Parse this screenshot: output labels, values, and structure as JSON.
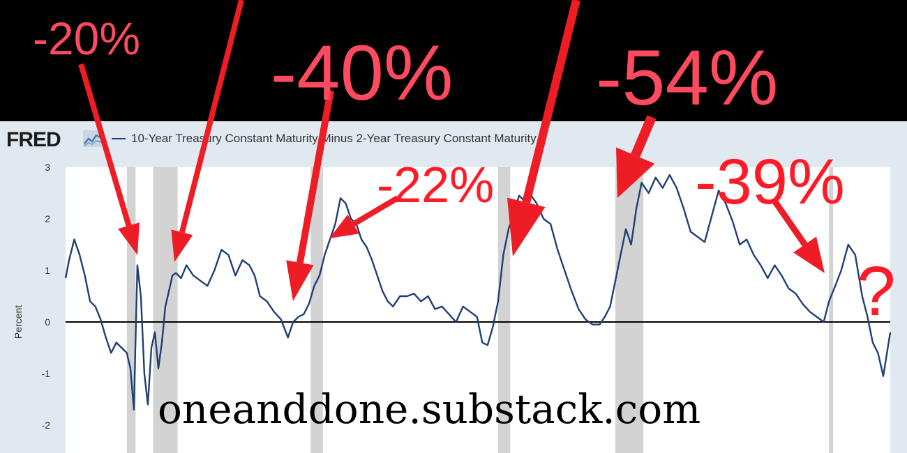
{
  "header": {
    "logo": "FRED",
    "logo_icon": "line-chart-icon"
  },
  "watermark": "oneanddone.substack.com",
  "colors": {
    "line": "#1f3f74",
    "recession": "#d3d3d3",
    "frame": "#e1e9f0",
    "annotation_pink": "#ff4a5f",
    "annotation_red": "#ff1a26",
    "arrow": "#ee1c25"
  },
  "annotations": {
    "a20": "-20%",
    "a40": "-40%",
    "a54": "-54%",
    "a22": "-22%",
    "a39": "-39%",
    "question": "?"
  },
  "chart_data": {
    "type": "line",
    "title": "",
    "legend": "10-Year Treasury Constant Maturity Minus 2-Year Treasury Constant Maturity",
    "xlabel": "",
    "ylabel": "Percent",
    "ylim": [
      -2.3,
      3.0
    ],
    "yticks": [
      3,
      2,
      1,
      0,
      -1,
      -2
    ],
    "xlim": [
      1976.5,
      2023.6
    ],
    "grid": false,
    "zero_line": true,
    "recessions": [
      [
        1980.0,
        1980.5
      ],
      [
        1981.5,
        1982.9
      ],
      [
        1990.5,
        1991.2
      ],
      [
        2001.2,
        2001.9
      ],
      [
        2007.9,
        2009.5
      ],
      [
        2020.1,
        2020.3
      ]
    ],
    "series": [
      {
        "name": "10-Year Treasury Constant Maturity Minus 2-Year Treasury Constant Maturity",
        "x": [
          1976.5,
          1976.7,
          1977.0,
          1977.3,
          1977.6,
          1977.9,
          1978.2,
          1978.5,
          1978.8,
          1979.1,
          1979.4,
          1979.7,
          1980.0,
          1980.2,
          1980.4,
          1980.6,
          1980.8,
          1981.0,
          1981.2,
          1981.4,
          1981.6,
          1981.8,
          1982.0,
          1982.2,
          1982.4,
          1982.6,
          1982.8,
          1983.1,
          1983.4,
          1983.8,
          1984.2,
          1984.6,
          1985.0,
          1985.4,
          1985.8,
          1986.2,
          1986.6,
          1987.0,
          1987.3,
          1987.6,
          1988.0,
          1988.4,
          1988.8,
          1989.2,
          1989.5,
          1989.8,
          1990.1,
          1990.4,
          1990.7,
          1991.0,
          1991.3,
          1991.6,
          1991.9,
          1992.2,
          1992.5,
          1992.8,
          1993.1,
          1993.4,
          1993.7,
          1994.0,
          1994.3,
          1994.6,
          1994.9,
          1995.2,
          1995.6,
          1996.0,
          1996.4,
          1996.8,
          1997.2,
          1997.6,
          1998.0,
          1998.4,
          1998.8,
          1999.2,
          1999.6,
          2000.0,
          2000.3,
          2000.6,
          2000.9,
          2001.2,
          2001.5,
          2001.8,
          2002.1,
          2002.4,
          2002.7,
          2003.0,
          2003.4,
          2003.8,
          2004.2,
          2004.6,
          2005.0,
          2005.4,
          2005.8,
          2006.2,
          2006.6,
          2007.0,
          2007.3,
          2007.6,
          2007.9,
          2008.2,
          2008.5,
          2008.8,
          2009.1,
          2009.4,
          2009.8,
          2010.2,
          2010.6,
          2011.0,
          2011.4,
          2011.8,
          2012.2,
          2012.6,
          2013.0,
          2013.4,
          2013.8,
          2014.2,
          2014.6,
          2015.0,
          2015.4,
          2015.8,
          2016.2,
          2016.6,
          2017.0,
          2017.4,
          2017.8,
          2018.2,
          2018.6,
          2019.0,
          2019.4,
          2019.8,
          2020.1,
          2020.4,
          2020.8,
          2021.2,
          2021.6,
          2022.0,
          2022.3,
          2022.6,
          2022.9,
          2023.2,
          2023.6
        ],
        "values": [
          0.85,
          1.2,
          1.6,
          1.3,
          0.9,
          0.4,
          0.3,
          0.05,
          -0.3,
          -0.6,
          -0.4,
          -0.5,
          -0.6,
          -0.9,
          -1.7,
          1.1,
          0.5,
          -1.0,
          -1.6,
          -0.5,
          -0.2,
          -0.9,
          -0.4,
          0.3,
          0.6,
          0.9,
          0.95,
          0.85,
          1.1,
          0.9,
          0.8,
          0.7,
          1.0,
          1.4,
          1.3,
          0.9,
          1.2,
          1.1,
          0.9,
          0.5,
          0.4,
          0.2,
          0.05,
          -0.3,
          0.0,
          0.1,
          0.15,
          0.35,
          0.7,
          0.9,
          1.3,
          1.6,
          1.9,
          2.4,
          2.3,
          2.0,
          1.9,
          1.6,
          1.45,
          1.2,
          0.9,
          0.6,
          0.4,
          0.3,
          0.5,
          0.5,
          0.55,
          0.4,
          0.5,
          0.25,
          0.3,
          0.15,
          0.0,
          0.3,
          0.2,
          0.1,
          -0.4,
          -0.45,
          -0.1,
          0.4,
          1.3,
          1.8,
          2.1,
          2.45,
          2.35,
          2.5,
          2.3,
          2.0,
          1.9,
          1.4,
          1.0,
          0.6,
          0.25,
          0.05,
          -0.05,
          -0.05,
          0.1,
          0.3,
          0.8,
          1.3,
          1.8,
          1.5,
          2.2,
          2.7,
          2.5,
          2.8,
          2.6,
          2.85,
          2.6,
          2.2,
          1.75,
          1.65,
          1.55,
          2.05,
          2.55,
          2.3,
          1.95,
          1.5,
          1.6,
          1.3,
          1.1,
          0.85,
          1.1,
          0.9,
          0.65,
          0.55,
          0.35,
          0.2,
          0.1,
          0.0,
          0.4,
          0.65,
          1.0,
          1.5,
          1.3,
          0.5,
          0.1,
          -0.4,
          -0.6,
          -1.05,
          -0.2
        ]
      }
    ]
  }
}
